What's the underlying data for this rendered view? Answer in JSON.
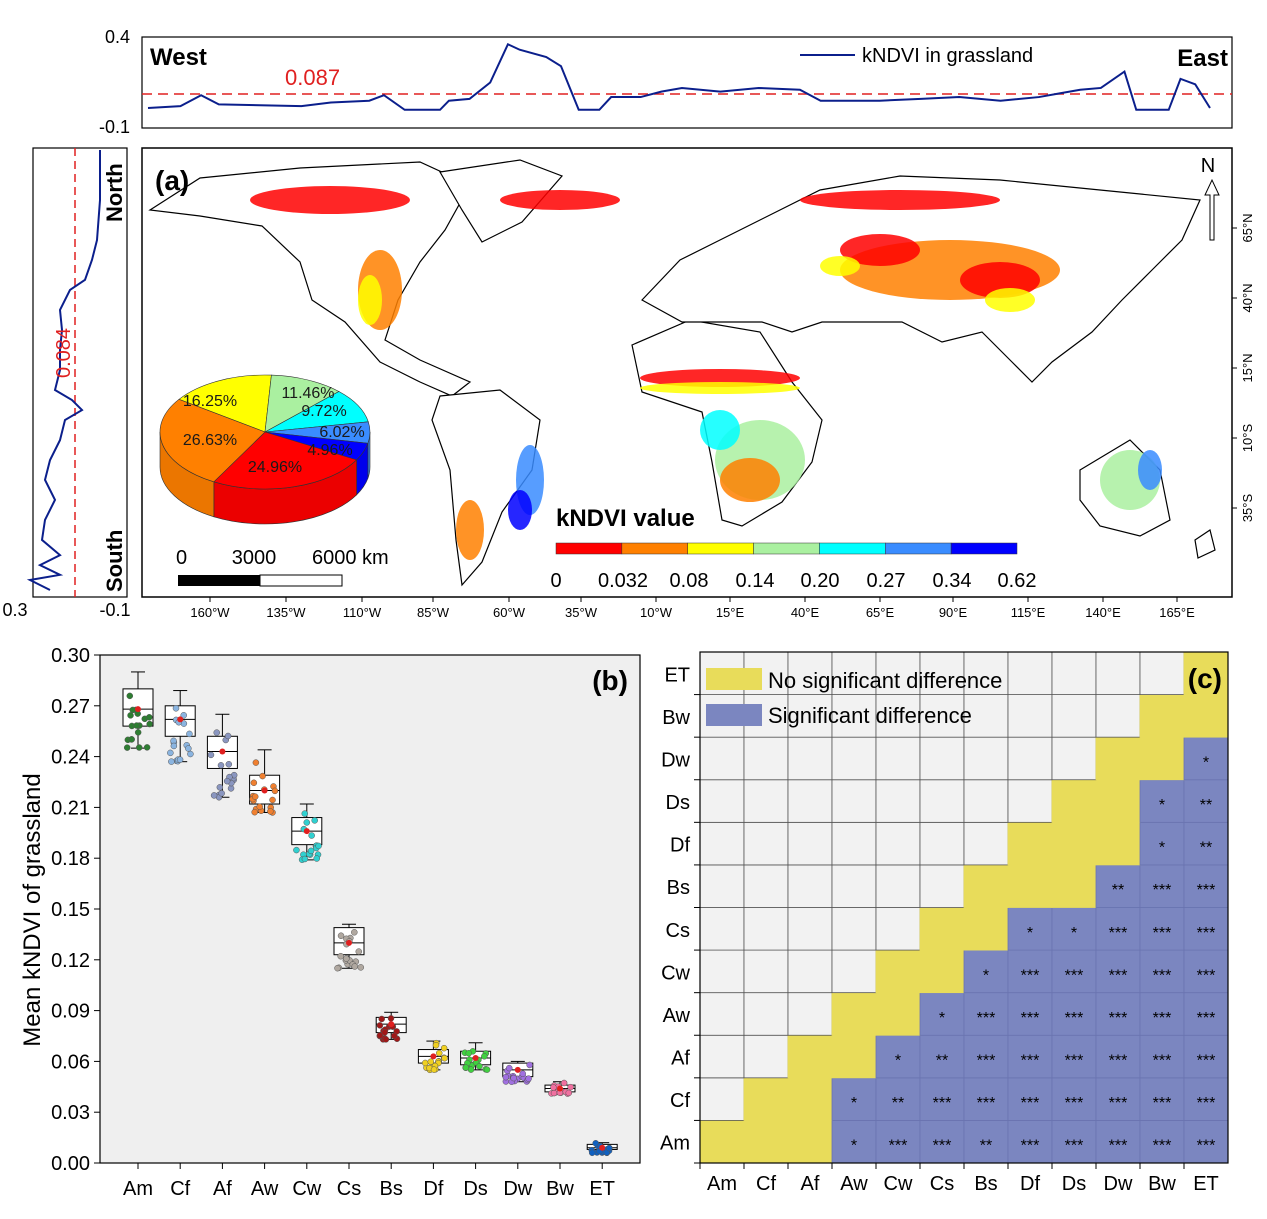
{
  "colors": {
    "classes": [
      "#ff0000",
      "#ff8000",
      "#ffff00",
      "#aaf0a0",
      "#00ffff",
      "#3a8cff",
      "#0000ff"
    ],
    "profile_line": "#0b1f8c",
    "mean_line": "#e02020",
    "no_sig": "#e8dc5a",
    "sig": "#7b86c0",
    "empty_cell": "#f2f2f2",
    "plot_bg": "#efefef"
  },
  "chart_data": [
    {
      "type": "line",
      "panel": "top-profile",
      "legend": "kNDVI in grassland",
      "legend_placement": "top",
      "left_label": "West",
      "right_label": "East",
      "ylim": [
        -0.1,
        0.4
      ],
      "yticks": [
        "0.4",
        "-0.1"
      ],
      "mean_value": 0.087,
      "mean_label": "0.087",
      "x_unit": "longitude",
      "points": [
        [
          -180,
          0.01
        ],
        [
          -169,
          0.02
        ],
        [
          -162,
          0.08
        ],
        [
          -156,
          0.03
        ],
        [
          -128,
          0.02
        ],
        [
          -118,
          0.04
        ],
        [
          -105,
          0.05
        ],
        [
          -100,
          0.08
        ],
        [
          -93,
          0.0
        ],
        [
          -81,
          0.0
        ],
        [
          -78,
          0.05
        ],
        [
          -71,
          0.06
        ],
        [
          -64,
          0.15
        ],
        [
          -58,
          0.36
        ],
        [
          -54,
          0.33
        ],
        [
          -45,
          0.29
        ],
        [
          -40,
          0.24
        ],
        [
          -34,
          0.0
        ],
        [
          -27,
          0.0
        ],
        [
          -23,
          0.07
        ],
        [
          -13,
          0.07
        ],
        [
          -6,
          0.1
        ],
        [
          1,
          0.12
        ],
        [
          14,
          0.1
        ],
        [
          27,
          0.12
        ],
        [
          41,
          0.11
        ],
        [
          48,
          0.05
        ],
        [
          68,
          0.05
        ],
        [
          82,
          0.06
        ],
        [
          95,
          0.07
        ],
        [
          109,
          0.05
        ],
        [
          122,
          0.07
        ],
        [
          129,
          0.09
        ],
        [
          136,
          0.11
        ],
        [
          143,
          0.12
        ],
        [
          151,
          0.21
        ],
        [
          155,
          0.0
        ],
        [
          166,
          0.0
        ],
        [
          170,
          0.17
        ],
        [
          175,
          0.14
        ],
        [
          180,
          0.01
        ]
      ]
    },
    {
      "type": "line",
      "panel": "left-profile",
      "top_label": "North",
      "bottom_label": "South",
      "xlim": [
        0.3,
        -0.1
      ],
      "xticks": [
        "0.3",
        "-0.1"
      ],
      "mean_value": 0.084,
      "mean_label": "0.084",
      "y_unit": "latitude",
      "points": [
        [
          85,
          -0.04
        ],
        [
          68.5,
          -0.04
        ],
        [
          55.3,
          -0.028
        ],
        [
          48.8,
          -0.008
        ],
        [
          42.2,
          0.02
        ],
        [
          38.9,
          0.08
        ],
        [
          32.3,
          0.12
        ],
        [
          25.7,
          0.112
        ],
        [
          19.1,
          0.12
        ],
        [
          12.5,
          0.12
        ],
        [
          5.9,
          0.14
        ],
        [
          2.6,
          0.072
        ],
        [
          -0.7,
          0.032
        ],
        [
          -4,
          0.1
        ],
        [
          -10.6,
          0.12
        ],
        [
          -17.2,
          0.16
        ],
        [
          -23.7,
          0.18
        ],
        [
          -30.3,
          0.14
        ],
        [
          -36.9,
          0.18
        ],
        [
          -43.5,
          0.192
        ],
        [
          -48.5,
          0.12
        ],
        [
          -51.8,
          0.2
        ],
        [
          -55,
          0.12
        ],
        [
          -56.7,
          0.24
        ],
        [
          -60,
          0.16
        ]
      ]
    },
    {
      "type": "pie",
      "panel": "a",
      "panel_label": "(a)",
      "colorbar_title": "kNDVI value",
      "colorbar_ticks": [
        "0",
        "0.032",
        "0.08",
        "0.14",
        "0.20",
        "0.27",
        "0.34",
        "0.62"
      ],
      "slices": [
        {
          "label": "24.96%",
          "value": 24.96,
          "class": 0
        },
        {
          "label": "26.63%",
          "value": 26.63,
          "class": 1
        },
        {
          "label": "16.25%",
          "value": 16.25,
          "class": 2
        },
        {
          "label": "11.46%",
          "value": 11.46,
          "class": 3
        },
        {
          "label": "9.72%",
          "value": 9.72,
          "class": 4
        },
        {
          "label": "6.02%",
          "value": 6.02,
          "class": 5
        },
        {
          "label": "4.96%",
          "value": 4.96,
          "class": 6
        }
      ],
      "scale_bar": [
        "0",
        "3000",
        "6000 km"
      ],
      "north_label": "N",
      "lon_ticks": [
        "160°W",
        "135°W",
        "110°W",
        "85°W",
        "60°W",
        "35°W",
        "10°W",
        "15°E",
        "40°E",
        "65°E",
        "90°E",
        "115°E",
        "140°E",
        "165°E"
      ],
      "lat_ticks": [
        "65°N",
        "40°N",
        "15°N",
        "10°S",
        "35°S"
      ]
    },
    {
      "type": "box",
      "panel": "b",
      "panel_label": "(b)",
      "ylabel": "Mean kNDVI of grassland",
      "ylim": [
        0,
        0.3
      ],
      "yticks": [
        "0.00",
        "0.03",
        "0.06",
        "0.09",
        "0.12",
        "0.15",
        "0.18",
        "0.21",
        "0.24",
        "0.27",
        "0.30"
      ],
      "grid": false,
      "boxes": [
        {
          "cat": "Am",
          "min": 0.245,
          "q1": 0.258,
          "median": 0.268,
          "q3": 0.28,
          "max": 0.29,
          "color": "#2e7d32"
        },
        {
          "cat": "Cf",
          "min": 0.237,
          "q1": 0.252,
          "median": 0.262,
          "q3": 0.27,
          "max": 0.279,
          "color": "#8ab4e0"
        },
        {
          "cat": "Af",
          "min": 0.216,
          "q1": 0.233,
          "median": 0.243,
          "q3": 0.252,
          "max": 0.265,
          "color": "#8a96c0"
        },
        {
          "cat": "Aw",
          "min": 0.207,
          "q1": 0.212,
          "median": 0.22,
          "q3": 0.229,
          "max": 0.244,
          "color": "#f08030"
        },
        {
          "cat": "Cw",
          "min": 0.179,
          "q1": 0.188,
          "median": 0.196,
          "q3": 0.204,
          "max": 0.212,
          "color": "#30d0d0"
        },
        {
          "cat": "Cs",
          "min": 0.115,
          "q1": 0.123,
          "median": 0.13,
          "q3": 0.139,
          "max": 0.141,
          "color": "#b0a8a0"
        },
        {
          "cat": "Bs",
          "min": 0.073,
          "q1": 0.077,
          "median": 0.082,
          "q3": 0.086,
          "max": 0.089,
          "color": "#a01818"
        },
        {
          "cat": "Df",
          "min": 0.055,
          "q1": 0.059,
          "median": 0.063,
          "q3": 0.067,
          "max": 0.072,
          "color": "#f0d020"
        },
        {
          "cat": "Ds",
          "min": 0.055,
          "q1": 0.058,
          "median": 0.062,
          "q3": 0.066,
          "max": 0.071,
          "color": "#40d040"
        },
        {
          "cat": "Dw",
          "min": 0.048,
          "q1": 0.051,
          "median": 0.055,
          "q3": 0.059,
          "max": 0.06,
          "color": "#a070e0"
        },
        {
          "cat": "Bw",
          "min": 0.041,
          "q1": 0.042,
          "median": 0.044,
          "q3": 0.046,
          "max": 0.048,
          "color": "#f070a0"
        },
        {
          "cat": "ET",
          "min": 0.006,
          "q1": 0.008,
          "median": 0.009,
          "q3": 0.011,
          "max": 0.012,
          "color": "#1060c0"
        }
      ]
    },
    {
      "type": "heatmap",
      "panel": "c",
      "panel_label": "(c)",
      "legend": [
        "No significant difference",
        "Significant difference"
      ],
      "legend_placement": "top-left",
      "categories": [
        "Am",
        "Cf",
        "Af",
        "Aw",
        "Cw",
        "Cs",
        "Bs",
        "Df",
        "Ds",
        "Dw",
        "Bw",
        "ET"
      ],
      "cells_note_codes": {
        "-": "empty",
        "ns": "no significant difference"
      },
      "rows": [
        [
          "ns",
          "ns",
          "ns",
          "*",
          "***",
          "***",
          "**",
          "***",
          "***",
          "***",
          "***",
          "***"
        ],
        [
          "-",
          "ns",
          "ns",
          "*",
          "**",
          "***",
          "***",
          "***",
          "***",
          "***",
          "***",
          "***"
        ],
        [
          "-",
          "-",
          "ns",
          "ns",
          "*",
          "**",
          "***",
          "***",
          "***",
          "***",
          "***",
          "***"
        ],
        [
          "-",
          "-",
          "-",
          "ns",
          "ns",
          "*",
          "***",
          "***",
          "***",
          "***",
          "***",
          "***"
        ],
        [
          "-",
          "-",
          "-",
          "-",
          "ns",
          "ns",
          "*",
          "***",
          "***",
          "***",
          "***",
          "***"
        ],
        [
          "-",
          "-",
          "-",
          "-",
          "-",
          "ns",
          "ns",
          "*",
          "*",
          "***",
          "***",
          "***"
        ],
        [
          "-",
          "-",
          "-",
          "-",
          "-",
          "-",
          "ns",
          "ns",
          "ns",
          "**",
          "***",
          "***"
        ],
        [
          "-",
          "-",
          "-",
          "-",
          "-",
          "-",
          "-",
          "ns",
          "ns",
          "ns",
          "*",
          "**"
        ],
        [
          "-",
          "-",
          "-",
          "-",
          "-",
          "-",
          "-",
          "-",
          "ns",
          "ns",
          "*",
          "**"
        ],
        [
          "-",
          "-",
          "-",
          "-",
          "-",
          "-",
          "-",
          "-",
          "-",
          "ns",
          "ns",
          "*"
        ],
        [
          "-",
          "-",
          "-",
          "-",
          "-",
          "-",
          "-",
          "-",
          "-",
          "-",
          "ns",
          "ns"
        ],
        [
          "-",
          "-",
          "-",
          "-",
          "-",
          "-",
          "-",
          "-",
          "-",
          "-",
          "-",
          "ns"
        ]
      ]
    }
  ]
}
